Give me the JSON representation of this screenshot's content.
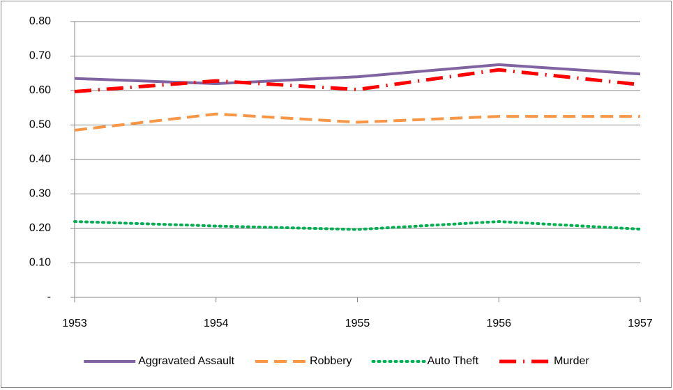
{
  "chart_data": {
    "type": "line",
    "x": [
      1953,
      1954,
      1955,
      1956,
      1957
    ],
    "xlim": [
      1953,
      1957
    ],
    "xticks": [
      1953,
      1954,
      1955,
      1956,
      1957
    ],
    "ylim": [
      0,
      0.8
    ],
    "yticks": [
      {
        "value": 0,
        "label": "-"
      },
      {
        "value": 0.1,
        "label": "0.10"
      },
      {
        "value": 0.2,
        "label": "0.20"
      },
      {
        "value": 0.3,
        "label": "0.30"
      },
      {
        "value": 0.4,
        "label": "0.40"
      },
      {
        "value": 0.5,
        "label": "0.50"
      },
      {
        "value": 0.6,
        "label": "0.60"
      },
      {
        "value": 0.7,
        "label": "0.70"
      },
      {
        "value": 0.8,
        "label": "0.80"
      }
    ],
    "grid": true,
    "legend": "bottom",
    "series": [
      {
        "name": "Aggravated Assault",
        "color": "#8064a2",
        "dash": "solid",
        "values": [
          0.635,
          0.62,
          0.64,
          0.675,
          0.648
        ]
      },
      {
        "name": "Robbery",
        "color": "#f79646",
        "dash": "dashed",
        "values": [
          0.485,
          0.532,
          0.508,
          0.525,
          0.525
        ]
      },
      {
        "name": "Auto Theft",
        "color": "#00b050",
        "dash": "dotted",
        "values": [
          0.22,
          0.207,
          0.197,
          0.22,
          0.198
        ]
      },
      {
        "name": "Murder",
        "color": "#ff0000",
        "dash": "dashdot",
        "values": [
          0.597,
          0.628,
          0.603,
          0.66,
          0.617
        ]
      }
    ]
  }
}
